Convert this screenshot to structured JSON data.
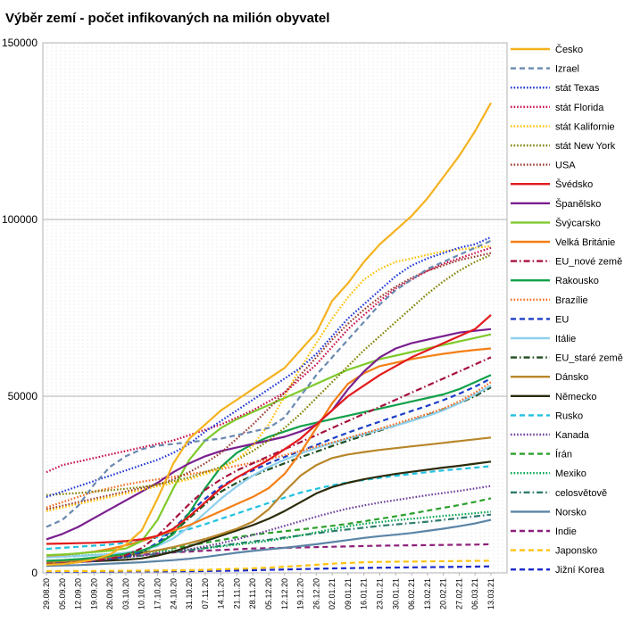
{
  "chart_data": {
    "type": "line",
    "title": "Výběr zemí - počet infikovaných na milión obyvatel",
    "xlabel": "",
    "ylabel": "",
    "ylim": [
      0,
      150000
    ],
    "yticks": [
      0,
      50000,
      100000,
      150000
    ],
    "ytick_labels": [
      "0",
      "50000",
      "100000",
      "150000"
    ],
    "x": [
      "29.08.20",
      "05.09.20",
      "12.09.20",
      "19.09.20",
      "26.09.20",
      "03.10.20",
      "10.10.20",
      "17.10.20",
      "24.10.20",
      "31.10.20",
      "07.11.20",
      "14.11.20",
      "21.11.20",
      "28.11.20",
      "05.12.20",
      "12.12.20",
      "19.12.20",
      "26.12.20",
      "02.01.21",
      "09.01.21",
      "16.01.21",
      "23.01.21",
      "30.01.21",
      "06.02.21",
      "13.02.21",
      "20.02.21",
      "27.02.21",
      "06.03.21",
      "13.03.21"
    ],
    "grid": true,
    "legend_position": "right",
    "series": [
      {
        "name": "Česko",
        "color": "#f5b21e",
        "dash": "solid",
        "values": [
          2300,
          2500,
          3000,
          3800,
          5200,
          8000,
          12000,
          21000,
          31000,
          38000,
          42000,
          46000,
          49000,
          52000,
          55000,
          58000,
          63000,
          68000,
          77000,
          82000,
          88000,
          93000,
          97000,
          101000,
          106000,
          112000,
          118000,
          125000,
          133000
        ]
      },
      {
        "name": "Izrael",
        "color": "#6a8ab0",
        "dash": "dash",
        "values": [
          13000,
          15000,
          19000,
          25000,
          30000,
          33000,
          35000,
          36000,
          36500,
          37000,
          37500,
          38000,
          39000,
          40000,
          41000,
          44000,
          50000,
          56000,
          61000,
          66000,
          71000,
          76000,
          80000,
          83000,
          86000,
          88000,
          90000,
          92000,
          94000
        ]
      },
      {
        "name": "stát Texas",
        "color": "#1f37d6",
        "dash": "dot",
        "values": [
          21500,
          23000,
          24500,
          26000,
          27500,
          29000,
          30500,
          32000,
          34000,
          36500,
          40000,
          43000,
          46000,
          49000,
          52000,
          55000,
          58000,
          62000,
          67000,
          72000,
          76000,
          80000,
          84000,
          87000,
          89000,
          90500,
          92000,
          93000,
          95000
        ]
      },
      {
        "name": "stát Florida",
        "color": "#c9104a",
        "dash": "dot",
        "values": [
          28500,
          30500,
          31500,
          32500,
          33500,
          34500,
          35500,
          36500,
          37500,
          39000,
          40500,
          42000,
          44000,
          46000,
          48500,
          51000,
          55000,
          59000,
          64000,
          69000,
          73000,
          77000,
          80500,
          83000,
          85500,
          87500,
          89000,
          90500,
          92000
        ]
      },
      {
        "name": "stát Kalifornie",
        "color": "#ffc000",
        "dash": "dot",
        "values": [
          17500,
          18500,
          19500,
          20500,
          21500,
          22500,
          23500,
          24500,
          25500,
          26500,
          28000,
          29500,
          32000,
          36000,
          42000,
          50000,
          58000,
          65000,
          72000,
          78000,
          83000,
          86000,
          88000,
          89000,
          90000,
          91000,
          91500,
          92000,
          92500
        ]
      },
      {
        "name": "stát New York",
        "color": "#808000",
        "dash": "dot",
        "values": [
          22000,
          22300,
          22600,
          23000,
          23400,
          23800,
          24300,
          25000,
          26000,
          27000,
          28500,
          30000,
          32000,
          34500,
          37500,
          41000,
          45000,
          49500,
          54000,
          58500,
          63000,
          67000,
          71000,
          75000,
          79000,
          82500,
          85500,
          88000,
          90000
        ]
      },
      {
        "name": "USA",
        "color": "#9a3b2e",
        "dash": "dot",
        "values": [
          18000,
          19000,
          20000,
          21000,
          22000,
          23000,
          24000,
          25000,
          26500,
          28500,
          31000,
          34000,
          38000,
          42000,
          46500,
          51000,
          56000,
          61000,
          66000,
          70500,
          74500,
          78000,
          81000,
          83500,
          85500,
          87000,
          88500,
          89500,
          90500
        ]
      },
      {
        "name": "Švédsko",
        "color": "#e31a1c",
        "dash": "solid",
        "values": [
          8200,
          8300,
          8400,
          8500,
          8700,
          9000,
          9500,
          10500,
          12500,
          16000,
          20000,
          24000,
          27000,
          29500,
          32000,
          35000,
          38000,
          42000,
          46000,
          50000,
          53000,
          56000,
          58500,
          61000,
          63000,
          65000,
          67000,
          69000,
          73000
        ]
      },
      {
        "name": "Španělsko",
        "color": "#7a1f8e",
        "dash": "solid",
        "values": [
          9500,
          11000,
          13000,
          15500,
          18000,
          20500,
          23000,
          25500,
          28500,
          31000,
          33000,
          34500,
          35500,
          36500,
          37500,
          38500,
          40000,
          42000,
          46000,
          52000,
          57000,
          61000,
          63500,
          65000,
          66000,
          67000,
          68000,
          68500,
          69000
        ]
      },
      {
        "name": "Švýcarsko",
        "color": "#7fca2c",
        "dash": "solid",
        "values": [
          5000,
          5200,
          5500,
          5900,
          6300,
          6900,
          9000,
          15000,
          24000,
          32000,
          37500,
          41000,
          43500,
          45500,
          47500,
          49500,
          51500,
          53500,
          55500,
          57500,
          59000,
          60500,
          61500,
          62500,
          63500,
          64500,
          65500,
          66500,
          67500
        ]
      },
      {
        "name": "Velká Británie",
        "color": "#f47f16",
        "dash": "solid",
        "values": [
          4900,
          5100,
          5500,
          6000,
          6800,
          7800,
          9000,
          10500,
          12000,
          13500,
          15500,
          17500,
          19500,
          21500,
          24000,
          28000,
          34000,
          41000,
          48000,
          53500,
          56500,
          58500,
          59500,
          60500,
          61300,
          62000,
          62600,
          63100,
          63500
        ]
      },
      {
        "name": "EU_nové země",
        "color": "#a6123c",
        "dash": "dashdot",
        "values": [
          2500,
          2700,
          3000,
          3400,
          4000,
          5000,
          7000,
          10500,
          15000,
          19500,
          23500,
          26500,
          29000,
          31000,
          33000,
          35000,
          37000,
          39000,
          41000,
          43000,
          45000,
          47000,
          49000,
          51000,
          53000,
          55000,
          57000,
          59000,
          61000
        ]
      },
      {
        "name": "Rakousko",
        "color": "#12a04a",
        "dash": "solid",
        "values": [
          3400,
          3600,
          3900,
          4300,
          4800,
          5400,
          6300,
          8000,
          11000,
          17000,
          24000,
          30000,
          34000,
          36500,
          38500,
          40000,
          41500,
          42500,
          43500,
          44500,
          45500,
          46500,
          47500,
          48500,
          49500,
          50500,
          52000,
          54000,
          56000
        ]
      },
      {
        "name": "Brazílie",
        "color": "#f36c20",
        "dash": "dot",
        "values": [
          18500,
          20000,
          21500,
          23000,
          24000,
          25000,
          25800,
          26500,
          27200,
          27900,
          28600,
          29400,
          30300,
          31200,
          32200,
          33300,
          34500,
          35700,
          36900,
          38200,
          39500,
          40800,
          42200,
          43600,
          45000,
          46500,
          48500,
          51000,
          54000
        ]
      },
      {
        "name": "EU",
        "color": "#1c3fc7",
        "dash": "dash",
        "values": [
          2500,
          2700,
          3000,
          3400,
          3900,
          4600,
          6000,
          8500,
          12500,
          17000,
          21000,
          24500,
          27000,
          29000,
          31000,
          32800,
          34500,
          36200,
          38000,
          39700,
          41300,
          42800,
          44300,
          45800,
          47300,
          48900,
          50700,
          52700,
          55000
        ]
      },
      {
        "name": "Itálie",
        "color": "#8fd0ee",
        "dash": "solid",
        "values": [
          4400,
          4600,
          4800,
          5000,
          5300,
          5700,
          6400,
          7600,
          9800,
          13000,
          17000,
          21000,
          24500,
          27500,
          30000,
          32000,
          33800,
          35300,
          36700,
          38000,
          39300,
          40500,
          41700,
          43000,
          44400,
          46000,
          48000,
          50500,
          53000
        ]
      },
      {
        "name": "EU_staré země",
        "color": "#1e4d1e",
        "dash": "dashdot",
        "values": [
          2500,
          2700,
          3000,
          3400,
          3900,
          4500,
          5800,
          8000,
          11500,
          15500,
          19500,
          23000,
          25500,
          27500,
          29300,
          31000,
          32700,
          34300,
          35900,
          37400,
          38900,
          40300,
          41700,
          43100,
          44600,
          46200,
          48000,
          50000,
          52500
        ]
      },
      {
        "name": "Dánsko",
        "color": "#b8862a",
        "dash": "solid",
        "values": [
          2900,
          3100,
          3400,
          3800,
          4300,
          4900,
          5600,
          6400,
          7300,
          8400,
          9600,
          11000,
          12500,
          14500,
          18000,
          23000,
          27500,
          30500,
          32500,
          33500,
          34200,
          34800,
          35300,
          35800,
          36300,
          36800,
          37300,
          37800,
          38300
        ]
      },
      {
        "name": "Německo",
        "color": "#2b2b0a",
        "dash": "solid",
        "values": [
          2900,
          3000,
          3100,
          3300,
          3500,
          3700,
          4100,
          4900,
          6000,
          7500,
          9000,
          10500,
          12000,
          13500,
          15300,
          17500,
          20000,
          22500,
          24300,
          25500,
          26500,
          27300,
          28000,
          28600,
          29200,
          29800,
          30300,
          30900,
          31500
        ]
      },
      {
        "name": "Rusko",
        "color": "#1fc2e0",
        "dash": "dash",
        "values": [
          6800,
          7100,
          7400,
          7700,
          8000,
          8500,
          9200,
          10100,
          11200,
          12400,
          13800,
          15300,
          16800,
          18300,
          19800,
          21300,
          22700,
          23800,
          24800,
          25600,
          26300,
          26900,
          27500,
          28000,
          28500,
          29000,
          29400,
          29800,
          30200
        ]
      },
      {
        "name": "Kanada",
        "color": "#6a3d9a",
        "dash": "dot",
        "values": [
          3400,
          3500,
          3600,
          3800,
          4100,
          4400,
          4900,
          5400,
          6000,
          6700,
          7500,
          8400,
          9500,
          10700,
          12000,
          13300,
          14600,
          15900,
          17100,
          18200,
          19100,
          19900,
          20600,
          21300,
          22000,
          22600,
          23200,
          23900,
          24600
        ]
      },
      {
        "name": "Írán",
        "color": "#2ca02c",
        "dash": "dash",
        "values": [
          4400,
          4600,
          4800,
          5000,
          5200,
          5500,
          5900,
          6400,
          7000,
          7700,
          8500,
          9300,
          10100,
          10800,
          11300,
          11800,
          12300,
          12800,
          13300,
          13900,
          14600,
          15300,
          16000,
          16800,
          17600,
          18400,
          19200,
          20100,
          21100
        ]
      },
      {
        "name": "Mexiko",
        "color": "#00a651",
        "dash": "dot",
        "values": [
          4500,
          4700,
          4900,
          5100,
          5300,
          5500,
          5700,
          6000,
          6300,
          6600,
          7000,
          7500,
          8000,
          8500,
          9100,
          9800,
          10600,
          11500,
          12400,
          13200,
          13900,
          14400,
          14900,
          15300,
          15700,
          16100,
          16500,
          16900,
          17300
        ]
      },
      {
        "name": "celosvětově",
        "color": "#2e7d6e",
        "dash": "dashdot",
        "values": [
          3200,
          3400,
          3600,
          3900,
          4200,
          4500,
          4900,
          5300,
          5800,
          6400,
          7000,
          7700,
          8300,
          8900,
          9400,
          10000,
          10600,
          11200,
          11800,
          12300,
          12800,
          13300,
          13700,
          14100,
          14500,
          15000,
          15500,
          16000,
          16500
        ]
      },
      {
        "name": "Norsko",
        "color": "#5b84a6",
        "dash": "solid",
        "values": [
          2000,
          2100,
          2200,
          2400,
          2600,
          2800,
          3000,
          3300,
          3600,
          4000,
          4500,
          5100,
          5700,
          6200,
          6700,
          7100,
          7600,
          8100,
          8700,
          9300,
          9900,
          10400,
          10800,
          11300,
          11900,
          12500,
          13200,
          14000,
          15000
        ]
      },
      {
        "name": "Indie",
        "color": "#8e1e7a",
        "dash": "dash",
        "values": [
          2600,
          3000,
          3400,
          3800,
          4300,
          4700,
          5100,
          5500,
          5800,
          6000,
          6300,
          6500,
          6700,
          6900,
          7000,
          7100,
          7200,
          7300,
          7400,
          7500,
          7600,
          7700,
          7750,
          7800,
          7850,
          7900,
          7950,
          8000,
          8100
        ]
      },
      {
        "name": "Japonsko",
        "color": "#ffc20e",
        "dash": "dash",
        "values": [
          500,
          520,
          540,
          560,
          580,
          600,
          630,
          670,
          720,
          780,
          870,
          1000,
          1150,
          1300,
          1500,
          1750,
          2000,
          2300,
          2600,
          2800,
          3000,
          3100,
          3150,
          3200,
          3250,
          3300,
          3350,
          3400,
          3450
        ]
      },
      {
        "name": "Jižní Korea",
        "color": "#1a29c9",
        "dash": "dash",
        "values": [
          350,
          370,
          390,
          400,
          410,
          420,
          430,
          440,
          450,
          480,
          520,
          580,
          660,
          750,
          850,
          950,
          1050,
          1150,
          1250,
          1350,
          1420,
          1470,
          1520,
          1570,
          1620,
          1670,
          1720,
          1780,
          1850
        ]
      }
    ]
  }
}
